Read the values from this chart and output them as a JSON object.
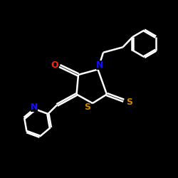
{
  "bg_color": "#000000",
  "bond_color": "#ffffff",
  "o_color": "#ff2200",
  "s_color": "#cc8800",
  "n_color": "#1111ff",
  "line_width": 1.8,
  "font_size": 9,
  "fig_size": [
    2.5,
    2.5
  ],
  "dpi": 100,
  "xlim": [
    0,
    10
  ],
  "ylim": [
    0,
    10
  ]
}
